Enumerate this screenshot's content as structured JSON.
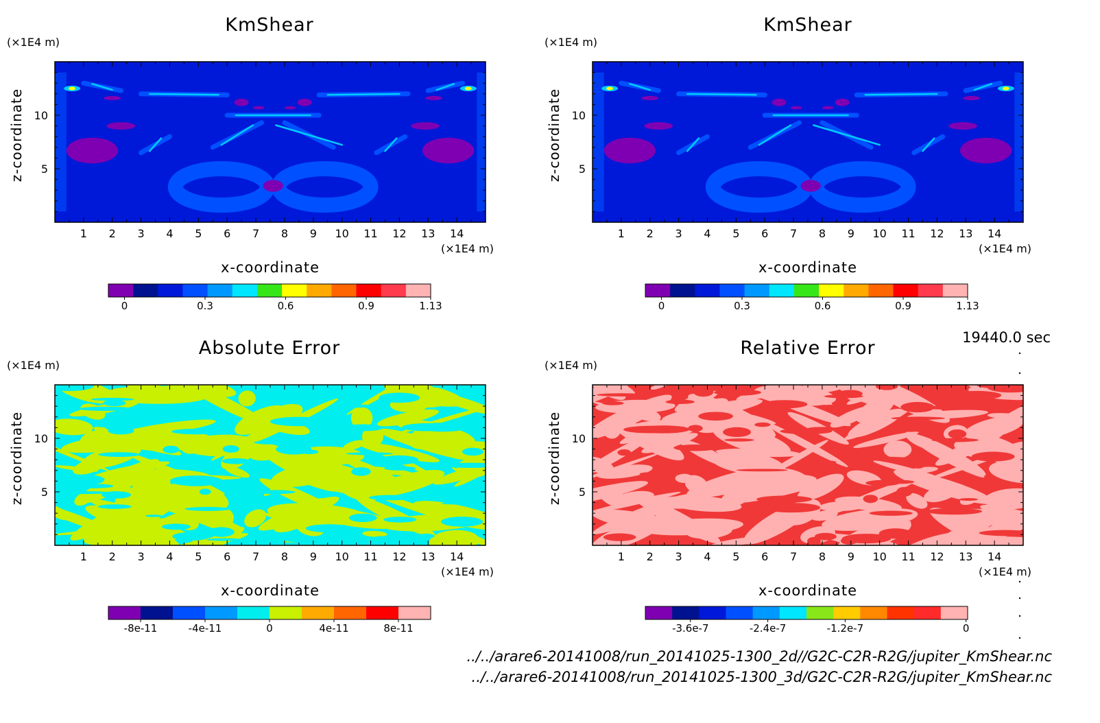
{
  "timestamp": "19440.0 sec",
  "footer": {
    "line1": "../../arare6-20141008/run_20141025-1300_2d//G2C-C2R-R2G/jupiter_KmShear.nc",
    "line2": "../../arare6-20141008/run_20141025-1300_3d/G2C-C2R-R2G/jupiter_KmShear.nc"
  },
  "chart_data": [
    {
      "type": "heatmap",
      "title": "KmShear",
      "xlabel": "x-coordinate",
      "ylabel": "z-coordinate",
      "x_unit": "(×1E4 m)",
      "y_unit": "(×1E4 m)",
      "x_ticks": [
        1,
        2,
        3,
        4,
        5,
        6,
        7,
        8,
        9,
        10,
        11,
        12,
        13,
        14
      ],
      "y_ticks": [
        5,
        10
      ],
      "xlim": [
        0,
        15
      ],
      "ylim": [
        0,
        15
      ],
      "background_color": "#0019d8",
      "colorbar": {
        "colors": [
          "#7f00b2",
          "#00128f",
          "#0019d8",
          "#0050ff",
          "#0099ff",
          "#00e6ff",
          "#36e619",
          "#ffff00",
          "#ffaa00",
          "#ff6600",
          "#ff0000",
          "#ff3b4d",
          "#ffb3b3"
        ],
        "tick_labels": [
          "0",
          "0.3",
          "0.6",
          "0.9",
          "1.13"
        ]
      }
    },
    {
      "type": "heatmap",
      "title": "KmShear",
      "xlabel": "x-coordinate",
      "ylabel": "z-coordinate",
      "x_unit": "(×1E4 m)",
      "y_unit": "(×1E4 m)",
      "x_ticks": [
        1,
        2,
        3,
        4,
        5,
        6,
        7,
        8,
        9,
        10,
        11,
        12,
        13,
        14
      ],
      "y_ticks": [
        5,
        10
      ],
      "xlim": [
        0,
        15
      ],
      "ylim": [
        0,
        15
      ],
      "background_color": "#0019d8",
      "colorbar": {
        "colors": [
          "#7f00b2",
          "#00128f",
          "#0019d8",
          "#0050ff",
          "#0099ff",
          "#00e6ff",
          "#36e619",
          "#ffff00",
          "#ffaa00",
          "#ff6600",
          "#ff0000",
          "#ff3b4d",
          "#ffb3b3"
        ],
        "tick_labels": [
          "0",
          "0.3",
          "0.6",
          "0.9",
          "1.13"
        ]
      }
    },
    {
      "type": "heatmap",
      "title": "Absolute Error",
      "xlabel": "x-coordinate",
      "ylabel": "z-coordinate",
      "x_unit": "(×1E4 m)",
      "y_unit": "(×1E4 m)",
      "x_ticks": [
        1,
        2,
        3,
        4,
        5,
        6,
        7,
        8,
        9,
        10,
        11,
        12,
        13,
        14
      ],
      "y_ticks": [
        5,
        10
      ],
      "xlim": [
        0,
        15
      ],
      "ylim": [
        0,
        15
      ],
      "background_color": "#00eeee",
      "pattern_color": "#c8f000",
      "colorbar": {
        "colors": [
          "#7f00b2",
          "#00128f",
          "#0050ff",
          "#0099ff",
          "#00eeee",
          "#c8f000",
          "#ffaa00",
          "#ff6600",
          "#ff0000",
          "#ffb3b3"
        ],
        "tick_labels": [
          "-8e-11",
          "-4e-11",
          "0",
          "4e-11",
          "8e-11"
        ]
      }
    },
    {
      "type": "heatmap",
      "title": "Relative Error",
      "xlabel": "x-coordinate",
      "ylabel": "z-coordinate",
      "x_unit": "(×1E4 m)",
      "y_unit": "(×1E4 m)",
      "x_ticks": [
        1,
        2,
        3,
        4,
        5,
        6,
        7,
        8,
        9,
        10,
        11,
        12,
        13,
        14
      ],
      "y_ticks": [
        5,
        10
      ],
      "xlim": [
        0,
        15
      ],
      "ylim": [
        0,
        15
      ],
      "background_color": "#f03838",
      "pattern_color": "#ffb0b0",
      "colorbar": {
        "colors": [
          "#7f00b2",
          "#00128f",
          "#0019d8",
          "#0050ff",
          "#0099ff",
          "#00e6ff",
          "#88e619",
          "#ffcc00",
          "#ff8800",
          "#ff3300",
          "#ff2a2a",
          "#ffb3b3"
        ],
        "tick_labels": [
          "-3.6e-7",
          "-2.4e-7",
          "-1.2e-7",
          "0"
        ]
      }
    }
  ]
}
